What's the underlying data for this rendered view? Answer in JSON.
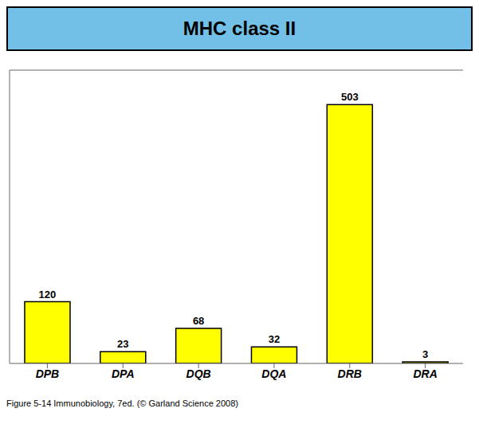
{
  "chart_data": {
    "type": "bar",
    "title": "MHC class II",
    "categories": [
      "DPB",
      "DPA",
      "DQB",
      "DQA",
      "DRB",
      "DRA"
    ],
    "values": [
      120,
      23,
      68,
      32,
      503,
      3
    ],
    "color": "#FFFF00",
    "ylim": [
      0,
      570
    ],
    "grid": false,
    "data_labels": true,
    "tick_labels": "x",
    "annotations": [
      "Figure 5-14  Immunobiology, 7ed. (© Garland Science 2008)"
    ]
  }
}
